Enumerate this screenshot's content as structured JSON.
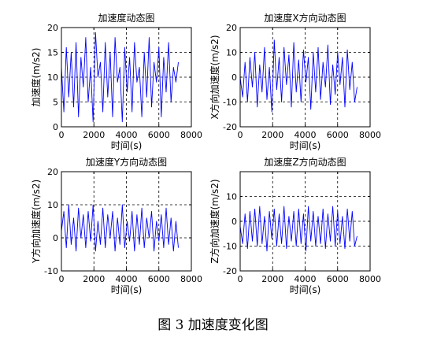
{
  "caption": "图 3  加速度变化图",
  "colors": {
    "line": "#0000ff",
    "axis": "#000000",
    "grid": "#000000",
    "background": "#ffffff"
  },
  "chart_data": [
    {
      "type": "line",
      "title": "加速度动态图",
      "xlabel": "时间(s)",
      "ylabel": "加速度(m/s2)",
      "xlim": [
        0,
        8000
      ],
      "ylim": [
        0,
        20
      ],
      "xticks": [
        0,
        2000,
        4000,
        6000,
        8000
      ],
      "yticks": [
        0,
        5,
        10,
        15,
        20
      ],
      "grid": true,
      "series": [
        {
          "x": [
            0,
            150,
            300,
            450,
            600,
            750,
            900,
            1050,
            1200,
            1350,
            1500,
            1650,
            1800,
            1950,
            2100,
            2250,
            2400,
            2550,
            2700,
            2850,
            3000,
            3150,
            3300,
            3450,
            3600,
            3750,
            3900,
            4050,
            4200,
            4350,
            4500,
            4650,
            4800,
            4950,
            5100,
            5250,
            5400,
            5550,
            5700,
            5850,
            6000,
            6150,
            6300,
            6450,
            6600,
            6750,
            6900,
            7050,
            7200
          ],
          "values": [
            12,
            3,
            16,
            6,
            15,
            4,
            17,
            2,
            14,
            8,
            18,
            5,
            12,
            1,
            19,
            10,
            13,
            3,
            17,
            6,
            15,
            2,
            18,
            9,
            12,
            1,
            16,
            7,
            14,
            3,
            17,
            9,
            12,
            2,
            15,
            6,
            18,
            4,
            13,
            9,
            16,
            2,
            14,
            7,
            17,
            5,
            12,
            9,
            13
          ]
        }
      ]
    },
    {
      "type": "line",
      "title": "加速度X方向动态图",
      "xlabel": "时间(s)",
      "ylabel": "X方向加速度(m/s2)",
      "xlim": [
        0,
        8000
      ],
      "ylim": [
        -20,
        20
      ],
      "xticks": [
        0,
        2000,
        4000,
        6000,
        8000
      ],
      "yticks": [
        -20,
        -10,
        0,
        10,
        20
      ],
      "grid": true,
      "series": [
        {
          "x": [
            0,
            150,
            300,
            450,
            600,
            750,
            900,
            1050,
            1200,
            1350,
            1500,
            1650,
            1800,
            1950,
            2100,
            2250,
            2400,
            2550,
            2700,
            2850,
            3000,
            3150,
            3300,
            3450,
            3600,
            3750,
            3900,
            4050,
            4200,
            4350,
            4500,
            4650,
            4800,
            4950,
            5100,
            5250,
            5400,
            5550,
            5700,
            5850,
            6000,
            6150,
            6300,
            6450,
            6600,
            6750,
            6900,
            7050,
            7200
          ],
          "values": [
            0,
            -8,
            6,
            -10,
            8,
            -4,
            10,
            -12,
            5,
            -6,
            12,
            -9,
            4,
            -14,
            15,
            -5,
            8,
            -10,
            12,
            -3,
            9,
            -12,
            14,
            -6,
            7,
            -10,
            11,
            -2,
            8,
            -13,
            10,
            -6,
            12,
            -9,
            6,
            -4,
            13,
            -11,
            5,
            -7,
            10,
            -3,
            8,
            -12,
            11,
            -5,
            6,
            -10,
            -4
          ]
        }
      ]
    },
    {
      "type": "line",
      "title": "加速度Y方向动态图",
      "xlabel": "时间(s)",
      "ylabel": "Y方向加速度(m/s2)",
      "xlim": [
        0,
        8000
      ],
      "ylim": [
        -10,
        20
      ],
      "xticks": [
        0,
        2000,
        4000,
        6000,
        8000
      ],
      "yticks": [
        -10,
        0,
        10,
        20
      ],
      "grid": true,
      "series": [
        {
          "x": [
            0,
            150,
            300,
            450,
            600,
            750,
            900,
            1050,
            1200,
            1350,
            1500,
            1650,
            1800,
            1950,
            2100,
            2250,
            2400,
            2550,
            2700,
            2850,
            3000,
            3150,
            3300,
            3450,
            3600,
            3750,
            3900,
            4050,
            4200,
            4350,
            4500,
            4650,
            4800,
            4950,
            5100,
            5250,
            5400,
            5550,
            5700,
            5850,
            6000,
            6150,
            6300,
            6450,
            6600,
            6750,
            6900,
            7050,
            7200
          ],
          "values": [
            2,
            8,
            -3,
            10,
            -2,
            6,
            -4,
            9,
            0,
            7,
            -3,
            8,
            -1,
            10,
            -4,
            5,
            -2,
            9,
            -3,
            7,
            0,
            8,
            -4,
            6,
            -2,
            10,
            -3,
            5,
            -1,
            8,
            -4,
            7,
            -2,
            9,
            -3,
            6,
            0,
            8,
            -4,
            5,
            -1,
            7,
            -3,
            9,
            -2,
            6,
            -4,
            5,
            -3
          ]
        }
      ]
    },
    {
      "type": "line",
      "title": "加速度Z方向动态图",
      "xlabel": "时间(s)",
      "ylabel": "Z方向加速度(m/s2)",
      "xlim": [
        0,
        8000
      ],
      "ylim": [
        -20,
        20
      ],
      "xticks": [
        0,
        2000,
        4000,
        6000,
        8000
      ],
      "yticks": [
        -20,
        -10,
        0,
        10
      ],
      "grid": true,
      "series": [
        {
          "x": [
            0,
            150,
            300,
            450,
            600,
            750,
            900,
            1050,
            1200,
            1350,
            1500,
            1650,
            1800,
            1950,
            2100,
            2250,
            2400,
            2550,
            2700,
            2850,
            3000,
            3150,
            3300,
            3450,
            3600,
            3750,
            3900,
            4050,
            4200,
            4350,
            4500,
            4650,
            4800,
            4950,
            5100,
            5250,
            5400,
            5550,
            5700,
            5850,
            6000,
            6150,
            6300,
            6450,
            6600,
            6750,
            6900,
            7050,
            7200
          ],
          "values": [
            -2,
            -9,
            3,
            -11,
            4,
            -8,
            5,
            -10,
            6,
            -9,
            2,
            -12,
            4,
            -7,
            5,
            -10,
            3,
            -9,
            6,
            -11,
            2,
            -8,
            4,
            -10,
            5,
            -9,
            3,
            -12,
            6,
            -8,
            4,
            -10,
            2,
            -9,
            5,
            -11,
            3,
            -8,
            6,
            -10,
            4,
            -9,
            2,
            -11,
            5,
            -8,
            4,
            -10,
            -6
          ]
        }
      ]
    }
  ]
}
